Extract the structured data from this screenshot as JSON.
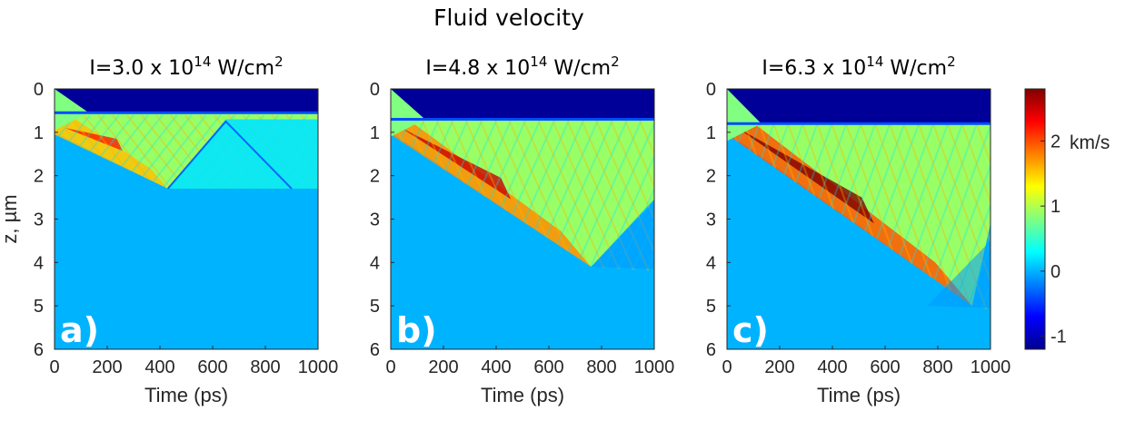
{
  "chart_data": {
    "type": "heatmap",
    "title": "Fluid velocity",
    "colorbar": {
      "colormap": "jet",
      "range": [
        -1.2,
        2.8
      ],
      "ticks": [
        "-1",
        "0",
        "1",
        "2"
      ],
      "tick_values": [
        -1,
        0,
        1,
        2
      ],
      "unit": "km/s"
    },
    "panels": [
      {
        "label": "a)",
        "title_prefix": "I=3.0 x 10",
        "title_exp": "14",
        "title_unit": " W/cm",
        "title_unit_exp": "2",
        "xlabel": "Time (ps)",
        "ylabel": "z, µm",
        "xlim": [
          0,
          1000
        ],
        "ylim": [
          0,
          6
        ],
        "xticks": [
          "0",
          "200",
          "400",
          "600",
          "800",
          "1000"
        ],
        "yticks": [
          "0",
          "1",
          "2",
          "3",
          "4",
          "5",
          "6"
        ],
        "front_end": {
          "t": 430,
          "z": 2.3
        },
        "ablation_depth": 0.55,
        "peak_velocity": 2.2
      },
      {
        "label": "b)",
        "title_prefix": "I=4.8 x 10",
        "title_exp": "14",
        "title_unit": " W/cm",
        "title_unit_exp": "2",
        "xlabel": "Time (ps)",
        "ylabel": "",
        "xlim": [
          0,
          1000
        ],
        "ylim": [
          0,
          6
        ],
        "xticks": [
          "0",
          "200",
          "400",
          "600",
          "800",
          "1000"
        ],
        "yticks": [
          "0",
          "1",
          "2",
          "3",
          "4",
          "5",
          "6"
        ],
        "front_end": {
          "t": 760,
          "z": 4.1
        },
        "ablation_depth": 0.7,
        "peak_velocity": 2.5
      },
      {
        "label": "c)",
        "title_prefix": "I=6.3 x 10",
        "title_exp": "14",
        "title_unit": " W/cm",
        "title_unit_exp": "2",
        "xlabel": "Time (ps)",
        "ylabel": "",
        "xlim": [
          0,
          1000
        ],
        "ylim": [
          0,
          6
        ],
        "xticks": [
          "0",
          "200",
          "400",
          "600",
          "800",
          "1000"
        ],
        "yticks": [
          "0",
          "1",
          "2",
          "3",
          "4",
          "5",
          "6"
        ],
        "front_end": {
          "t": 930,
          "z": 5.0
        },
        "ablation_depth": 0.8,
        "peak_velocity": 2.8
      }
    ]
  }
}
